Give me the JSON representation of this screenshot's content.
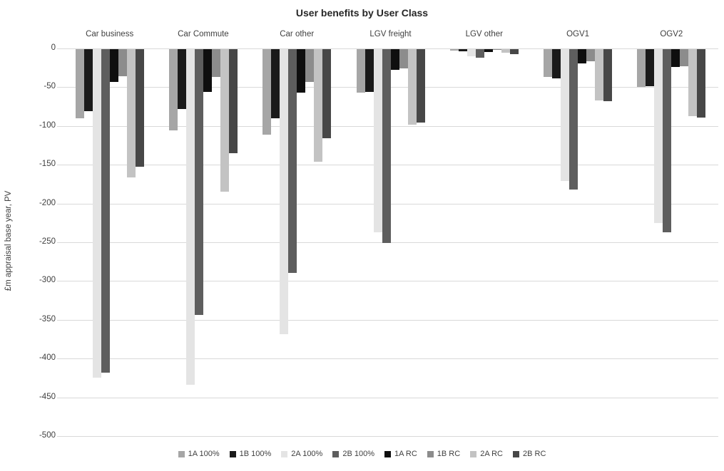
{
  "title": "User benefits by User Class",
  "chart_data": {
    "type": "bar",
    "title": "User benefits by User Class",
    "ylabel": "£m appraisal base year, PV",
    "xlabel": "",
    "ylim": [
      -500,
      0
    ],
    "grid": true,
    "legend_position": "bottom",
    "yticks": [
      0,
      -50,
      -100,
      -150,
      -200,
      -250,
      -300,
      -350,
      -400,
      -450,
      -500
    ],
    "categories": [
      "Car business",
      "Car Commute",
      "Car other",
      "LGV freight",
      "LGV other",
      "OGV1",
      "OGV2"
    ],
    "series": [
      {
        "name": "1A 100%",
        "color": "#a6a6a6",
        "values": [
          -89,
          -105,
          -110,
          -56,
          -2,
          -36,
          -49
        ]
      },
      {
        "name": "1B 100%",
        "color": "#1a1a1a",
        "values": [
          -80,
          -77,
          -89,
          -55,
          -3,
          -38,
          -48
        ]
      },
      {
        "name": "2A 100%",
        "color": "#e4e4e4",
        "values": [
          -424,
          -433,
          -368,
          -236,
          -9,
          -170,
          -224
        ]
      },
      {
        "name": "2B 100%",
        "color": "#5e5e5e",
        "values": [
          -417,
          -343,
          -289,
          -250,
          -11,
          -181,
          -236
        ]
      },
      {
        "name": "1A RC",
        "color": "#0f0f0f",
        "values": [
          -42,
          -55,
          -56,
          -27,
          -4,
          -18,
          -23
        ]
      },
      {
        "name": "1B RC",
        "color": "#8c8c8c",
        "values": [
          -35,
          -36,
          -42,
          -25,
          -1,
          -16,
          -22
        ]
      },
      {
        "name": "2A RC",
        "color": "#c3c3c3",
        "values": [
          -165,
          -184,
          -145,
          -97,
          -5,
          -66,
          -86
        ]
      },
      {
        "name": "2B RC",
        "color": "#474747",
        "values": [
          -152,
          -134,
          -115,
          -95,
          -6,
          -67,
          -88
        ]
      }
    ]
  }
}
